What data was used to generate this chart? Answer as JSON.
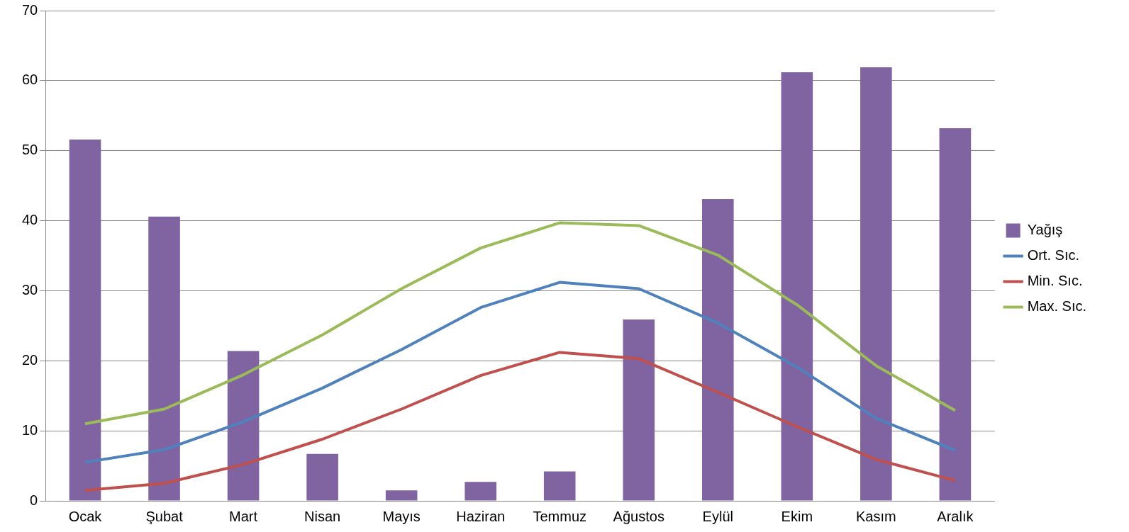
{
  "chart_data": {
    "type": "bar",
    "categories": [
      "Ocak",
      "Şubat",
      "Mart",
      "Nisan",
      "Mayıs",
      "Haziran",
      "Temmuz",
      "Ağustos",
      "Eylül",
      "Ekim",
      "Kasım",
      "Aralık"
    ],
    "series": [
      {
        "name": "Yağış",
        "color": "#8064a2",
        "values": [
          51.6,
          40.6,
          21.4,
          6.7,
          1.5,
          2.7,
          4.2,
          25.9,
          43.1,
          61.2,
          61.9,
          53.2
        ]
      },
      {
        "name": "Ort. Sıc.",
        "type": "line",
        "color": "#4f81bd",
        "values": [
          5.5,
          7.3,
          11.3,
          16.1,
          21.6,
          27.6,
          31.2,
          30.3,
          25.4,
          19.1,
          11.8,
          7.2
        ]
      },
      {
        "name": "Min. Sıc.",
        "type": "line",
        "color": "#c0504d",
        "values": [
          1.5,
          2.5,
          5.2,
          8.8,
          13.1,
          17.9,
          21.2,
          20.3,
          15.5,
          10.6,
          5.9,
          2.9
        ]
      },
      {
        "name": "Max. Sıc.",
        "type": "line",
        "color": "#9bbb59",
        "values": [
          11.0,
          13.1,
          18.0,
          23.7,
          30.3,
          36.1,
          39.7,
          39.3,
          35.1,
          28.0,
          19.3,
          12.9
        ]
      }
    ],
    "ylim": [
      0,
      70
    ],
    "yticks": [
      0,
      10,
      20,
      30,
      40,
      50,
      60,
      70
    ],
    "grid": "y",
    "legend": "right",
    "marker": "none"
  }
}
